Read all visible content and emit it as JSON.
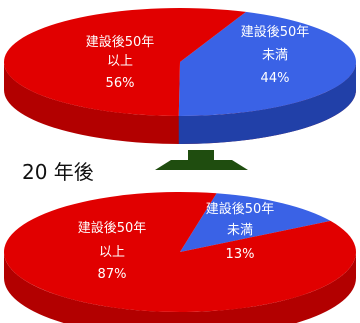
{
  "colors": {
    "red": "#e10000",
    "red_side": "#b20000",
    "blue": "#3a62e6",
    "blue_side": "#2140a8",
    "arrow": "#1f4d0f"
  },
  "transition_label": "20 年後",
  "chart_data": [
    {
      "type": "pie",
      "style": "3d",
      "slices": [
        {
          "line1": "建設後50年",
          "line2": "以上",
          "percent_label": "56%",
          "value": 56,
          "color": "#e10000"
        },
        {
          "line1": "建設後50年",
          "line2": "未満",
          "percent_label": "44%",
          "value": 44,
          "color": "#3a62e6"
        }
      ]
    },
    {
      "type": "pie",
      "style": "3d",
      "slices": [
        {
          "line1": "建設後50年",
          "line2": "以上",
          "percent_label": "87%",
          "value": 87,
          "color": "#e10000"
        },
        {
          "line1": "建設後50年",
          "line2": "未満",
          "percent_label": "13%",
          "value": 13,
          "color": "#3a62e6"
        }
      ]
    }
  ]
}
